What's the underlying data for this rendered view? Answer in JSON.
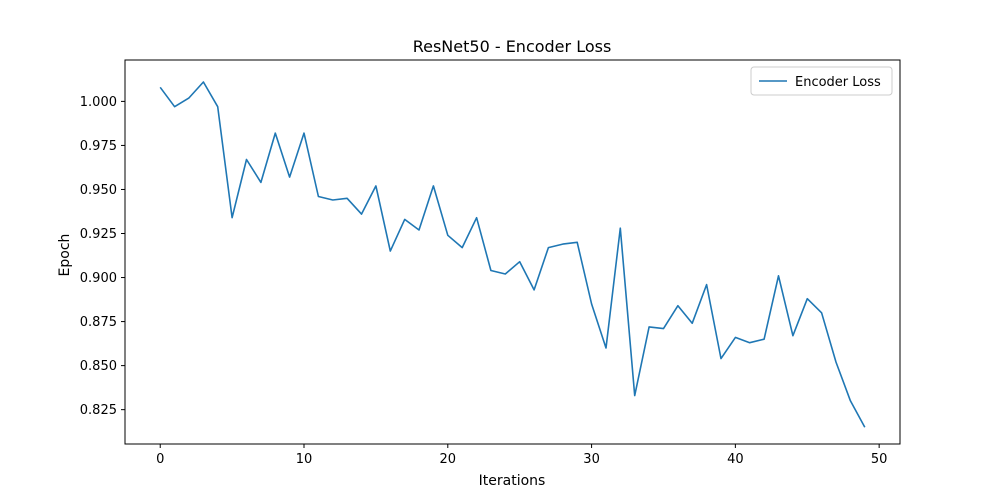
{
  "chart_data": {
    "type": "line",
    "title": "ResNet50 - Encoder Loss",
    "xlabel": "Iterations",
    "ylabel": "Epoch",
    "xlim": [
      -2.45,
      51.45
    ],
    "ylim": [
      0.8055,
      1.0235
    ],
    "x_ticks": [
      0,
      10,
      20,
      30,
      40,
      50
    ],
    "y_ticks": [
      0.825,
      0.85,
      0.875,
      0.9,
      0.925,
      0.95,
      0.975,
      1.0
    ],
    "grid": false,
    "legend": {
      "position": "top-right",
      "entries": [
        "Encoder Loss"
      ]
    },
    "series": [
      {
        "name": "Encoder Loss",
        "color": "#1f77b4",
        "x": [
          0,
          1,
          2,
          3,
          4,
          5,
          6,
          7,
          8,
          9,
          10,
          11,
          12,
          13,
          14,
          15,
          16,
          17,
          18,
          19,
          20,
          21,
          22,
          23,
          24,
          25,
          26,
          27,
          28,
          29,
          30,
          31,
          32,
          33,
          34,
          35,
          36,
          37,
          38,
          39,
          40,
          41,
          42,
          43,
          44,
          45,
          46,
          47,
          48,
          49
        ],
        "values": [
          1.008,
          0.997,
          1.002,
          1.011,
          0.997,
          0.934,
          0.967,
          0.954,
          0.982,
          0.957,
          0.982,
          0.946,
          0.944,
          0.945,
          0.936,
          0.952,
          0.915,
          0.933,
          0.927,
          0.952,
          0.924,
          0.917,
          0.934,
          0.904,
          0.902,
          0.909,
          0.893,
          0.917,
          0.919,
          0.92,
          0.885,
          0.86,
          0.928,
          0.833,
          0.872,
          0.871,
          0.884,
          0.874,
          0.896,
          0.854,
          0.866,
          0.863,
          0.865,
          0.901,
          0.867,
          0.888,
          0.88,
          0.852,
          0.83,
          0.815
        ]
      }
    ]
  }
}
